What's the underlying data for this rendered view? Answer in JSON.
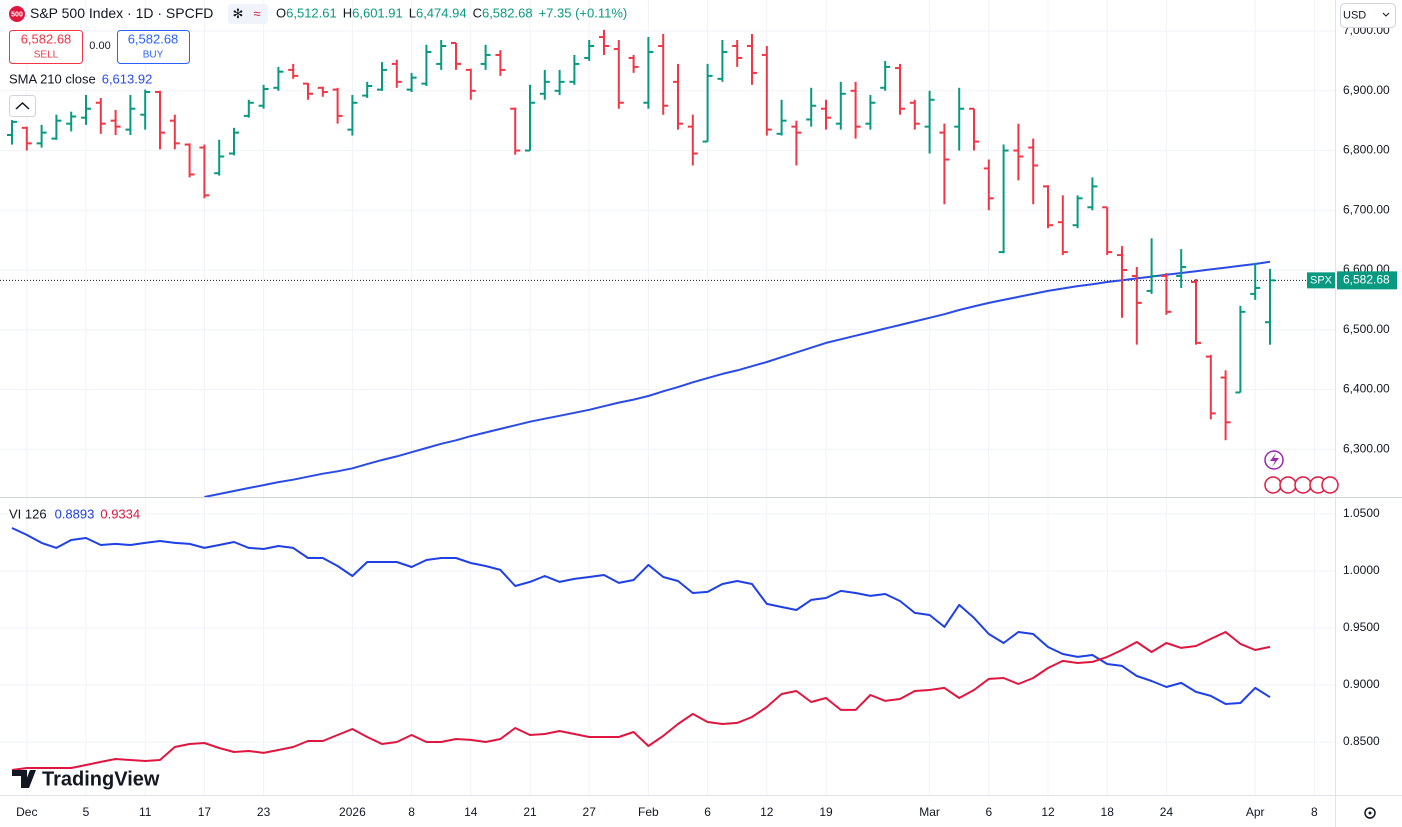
{
  "header": {
    "logo": "500",
    "title": "S&P 500 Index · 1D · SPCFD",
    "ohlc": [
      {
        "label": "O",
        "value": "6,512.61"
      },
      {
        "label": "H",
        "value": "6,601.91"
      },
      {
        "label": "L",
        "value": "6,474.94"
      },
      {
        "label": "C",
        "value": "6,582.68"
      }
    ],
    "change": "+7.35 (+0.11%)",
    "sell_price": "6,582.68",
    "sell": "SELL",
    "spread": "0.00",
    "buy_price": "6,582.68",
    "buy": "BUY",
    "currency": "USD",
    "brand": "TradingView"
  },
  "chart_data": [
    {
      "type": "ohlc",
      "categories": [
        null,
        "Dec",
        null,
        null,
        null,
        "5",
        null,
        null,
        null,
        "11",
        null,
        null,
        null,
        "17",
        null,
        null,
        null,
        "23",
        null,
        null,
        null,
        null,
        null,
        "2026",
        null,
        null,
        null,
        "8",
        null,
        null,
        null,
        "14",
        null,
        null,
        null,
        "21",
        null,
        null,
        null,
        "27",
        null,
        null,
        null,
        "Feb",
        null,
        null,
        null,
        "6",
        null,
        null,
        null,
        "12",
        null,
        null,
        null,
        "19",
        null,
        null,
        null,
        null,
        null,
        null,
        "Mar",
        null,
        null,
        null,
        "6",
        null,
        null,
        null,
        "12",
        null,
        null,
        null,
        "18",
        null,
        null,
        null,
        "24",
        null,
        null,
        null,
        null,
        null,
        "Apr",
        null,
        null,
        null,
        "8",
        null
      ],
      "open": [
        6826,
        6838,
        6812,
        6820,
        6845,
        6855,
        6880,
        6850,
        6835,
        6860,
        6898,
        6850,
        6810,
        6805,
        6762,
        6795,
        6858,
        6875,
        6905,
        6935,
        6912,
        6905,
        6902,
        6835,
        6892,
        6902,
        6945,
        6902,
        6912,
        6945,
        6980,
        6935,
        6945,
        6960,
        6870,
        6800,
        6895,
        6900,
        6915,
        6955,
        6990,
        6970,
        6955,
        6880,
        6975,
        6915,
        6840,
        6815,
        6920,
        6975,
        6975,
        6960,
        6828,
        6840,
        6852,
        6870,
        6845,
        6900,
        6845,
        6905,
        6938,
        6880,
        6840,
        6830,
        6840,
        6870,
        6770,
        6630,
        6800,
        6805,
        6740,
        6680,
        6675,
        6705,
        6705,
        6625,
        6590,
        6565,
        6590,
        6590,
        6580,
        6455,
        6420,
        6395,
        6560,
        6512.61,
        null,
        null,
        null,
        null
      ],
      "high": [
        6851,
        6840,
        6843,
        6860,
        6865,
        6893,
        6888,
        6868,
        6893,
        6902,
        6900,
        6860,
        6812,
        6810,
        6818,
        6838,
        6885,
        6910,
        6940,
        6945,
        6913,
        6907,
        6905,
        6893,
        6915,
        6948,
        6952,
        6930,
        6977,
        6985,
        6980,
        6937,
        6977,
        6968,
        6872,
        6910,
        6935,
        6935,
        6960,
        6985,
        7002,
        6985,
        6960,
        6990,
        6995,
        6945,
        6860,
        6945,
        6985,
        6985,
        6995,
        6975,
        6885,
        6850,
        6905,
        6885,
        6915,
        6915,
        6893,
        6950,
        6945,
        6885,
        6900,
        6845,
        6905,
        6870,
        6785,
        6810,
        6845,
        6820,
        6742,
        6725,
        6725,
        6755,
        6705,
        6640,
        6605,
        6653,
        6595,
        6635,
        6585,
        6458,
        6432,
        6540,
        6612,
        6601.91,
        null,
        null,
        null,
        null
      ],
      "low": [
        6810,
        6800,
        6805,
        6818,
        6832,
        6843,
        6828,
        6826,
        6826,
        6835,
        6802,
        6802,
        6755,
        6720,
        6758,
        6792,
        6855,
        6870,
        6900,
        6920,
        6885,
        6890,
        6845,
        6825,
        6888,
        6900,
        6905,
        6898,
        6908,
        6935,
        6935,
        6885,
        6935,
        6925,
        6793,
        6800,
        6885,
        6893,
        6910,
        6950,
        6960,
        6870,
        6930,
        6870,
        6860,
        6835,
        6775,
        6815,
        6915,
        6940,
        6910,
        6825,
        6825,
        6775,
        6840,
        6835,
        6835,
        6820,
        6835,
        6900,
        6860,
        6835,
        6795,
        6710,
        6800,
        6800,
        6700,
        6628,
        6750,
        6710,
        6670,
        6625,
        6670,
        6700,
        6625,
        6520,
        6475,
        6560,
        6525,
        6570,
        6475,
        6350,
        6315,
        6395,
        6550,
        6474.94,
        null,
        null,
        null,
        null
      ],
      "close": [
        6848,
        6812,
        6830,
        6850,
        6857,
        6870,
        6845,
        6840,
        6870,
        6898,
        6830,
        6812,
        6760,
        6725,
        6790,
        6830,
        6880,
        6903,
        6932,
        6925,
        6895,
        6898,
        6858,
        6880,
        6908,
        6935,
        6915,
        6922,
        6965,
        6975,
        6945,
        6900,
        6960,
        6935,
        6800,
        6880,
        6915,
        6915,
        6945,
        6975,
        6975,
        6880,
        6940,
        6965,
        6875,
        6845,
        6795,
        6925,
        6965,
        6955,
        6930,
        6835,
        6850,
        6830,
        6875,
        6855,
        6895,
        6840,
        6880,
        6940,
        6870,
        6845,
        6885,
        6785,
        6870,
        6815,
        6720,
        6800,
        6790,
        6775,
        6675,
        6630,
        6720,
        6740,
        6630,
        6600,
        6545,
        6590,
        6530,
        6605,
        6478,
        6360,
        6345,
        6530,
        6570,
        6582.68,
        null,
        null,
        null,
        null
      ],
      "up_color": "#089981",
      "down_color": "#f23645",
      "series": [
        {
          "name": "SMA 210 close",
          "color": "#2a4be8",
          "legend_value": "6,613.92",
          "values": [
            null,
            null,
            null,
            null,
            null,
            null,
            null,
            null,
            null,
            null,
            null,
            null,
            null,
            6220,
            6225,
            6230,
            6235,
            6240,
            6245,
            6249,
            6254,
            6259,
            6263,
            6268,
            6275,
            6282,
            6288,
            6295,
            6302,
            6309,
            6315,
            6322,
            6328,
            6334,
            6340,
            6346,
            6351,
            6356,
            6361,
            6366,
            6372,
            6378,
            6383,
            6389,
            6397,
            6404,
            6412,
            6419,
            6426,
            6432,
            6439,
            6446,
            6454,
            6462,
            6470,
            6478,
            6484,
            6490,
            6496,
            6502,
            6508,
            6514,
            6520,
            6526,
            6533,
            6539,
            6545,
            6550,
            6555,
            6560,
            6565,
            6569,
            6573,
            6576,
            6580,
            6583,
            6586,
            6589,
            6592,
            6595,
            6598,
            6601,
            6604,
            6607,
            6610,
            6613.92,
            null,
            null,
            null,
            null
          ]
        }
      ],
      "price_tag": {
        "label": "SPX",
        "value": "6,582.68"
      },
      "ylim": [
        6220,
        7052
      ],
      "yticks": [
        {
          "value": 6300,
          "label": "6,300.00"
        },
        {
          "value": 6400,
          "label": "6,400.00"
        },
        {
          "value": 6500,
          "label": "6,500.00"
        },
        {
          "value": 6600,
          "label": "6,600.00"
        },
        {
          "value": 6700,
          "label": "6,700.00"
        },
        {
          "value": 6800,
          "label": "6,800.00"
        },
        {
          "value": 6900,
          "label": "6,900.00"
        },
        {
          "value": 7000,
          "label": "7,000.00"
        }
      ],
      "grid": true
    },
    {
      "type": "line",
      "title": "VI 126",
      "series": [
        {
          "color": "#1e40e6",
          "legend_value": "0.8893",
          "values": [
            1.0377,
            1.0316,
            1.0246,
            1.0202,
            1.0272,
            1.0289,
            1.0228,
            1.0237,
            1.0228,
            1.0246,
            1.0263,
            1.0246,
            1.0237,
            1.0202,
            1.0228,
            1.0254,
            1.0202,
            1.0193,
            1.0219,
            1.0202,
            1.0114,
            1.0114,
            1.0044,
            0.9956,
            1.0079,
            1.0079,
            1.0079,
            1.0035,
            1.0096,
            1.0114,
            1.0114,
            1.007,
            1.0044,
            1.0009,
            0.9868,
            0.9904,
            0.9956,
            0.9904,
            0.993,
            0.9947,
            0.9965,
            0.9895,
            0.9921,
            1.0053,
            0.9947,
            0.9912,
            0.9807,
            0.9816,
            0.9886,
            0.9912,
            0.9886,
            0.9711,
            0.9684,
            0.9658,
            0.9746,
            0.9763,
            0.9825,
            0.9807,
            0.9781,
            0.9798,
            0.9737,
            0.9632,
            0.9614,
            0.9509,
            0.9702,
            0.9588,
            0.9447,
            0.9368,
            0.9465,
            0.9447,
            0.9333,
            0.9272,
            0.9246,
            0.9263,
            0.9184,
            0.9167,
            0.9079,
            0.9035,
            0.8982,
            0.9018,
            0.8939,
            0.8904,
            0.8833,
            0.8842,
            0.8974,
            0.8893,
            null,
            null,
            null,
            null
          ]
        },
        {
          "color": "#e0163e",
          "legend_value": "0.9334",
          "values": [
            0.8254,
            0.8272,
            0.8272,
            0.8272,
            0.8272,
            0.8298,
            0.8325,
            0.8351,
            0.8342,
            0.8333,
            0.8342,
            0.8456,
            0.8482,
            0.8491,
            0.8447,
            0.8412,
            0.8421,
            0.8404,
            0.843,
            0.8456,
            0.8509,
            0.8509,
            0.8561,
            0.8614,
            0.8544,
            0.8482,
            0.85,
            0.8561,
            0.85,
            0.85,
            0.8526,
            0.8518,
            0.85,
            0.8526,
            0.8623,
            0.8561,
            0.857,
            0.8596,
            0.857,
            0.8544,
            0.8544,
            0.8544,
            0.8588,
            0.8465,
            0.8553,
            0.8658,
            0.8746,
            0.8675,
            0.8658,
            0.8667,
            0.8719,
            0.8807,
            0.8921,
            0.8947,
            0.8851,
            0.8886,
            0.8781,
            0.8781,
            0.8912,
            0.886,
            0.8877,
            0.8947,
            0.8956,
            0.8974,
            0.8886,
            0.8956,
            0.9053,
            0.9061,
            0.9009,
            0.9061,
            0.9149,
            0.9211,
            0.9193,
            0.9202,
            0.9246,
            0.9307,
            0.9377,
            0.9289,
            0.9368,
            0.9325,
            0.9342,
            0.9404,
            0.9465,
            0.936,
            0.9307,
            0.9334,
            null,
            null,
            null,
            null
          ]
        }
      ],
      "ylim": [
        0.8035,
        1.064
      ],
      "yticks": [
        {
          "value": 0.85,
          "label": "0.8500"
        },
        {
          "value": 0.9,
          "label": "0.9000"
        },
        {
          "value": 0.95,
          "label": "0.9500"
        },
        {
          "value": 1,
          "label": "1.0000"
        },
        {
          "value": 1.05,
          "label": "1.0500"
        }
      ],
      "grid": true
    }
  ]
}
